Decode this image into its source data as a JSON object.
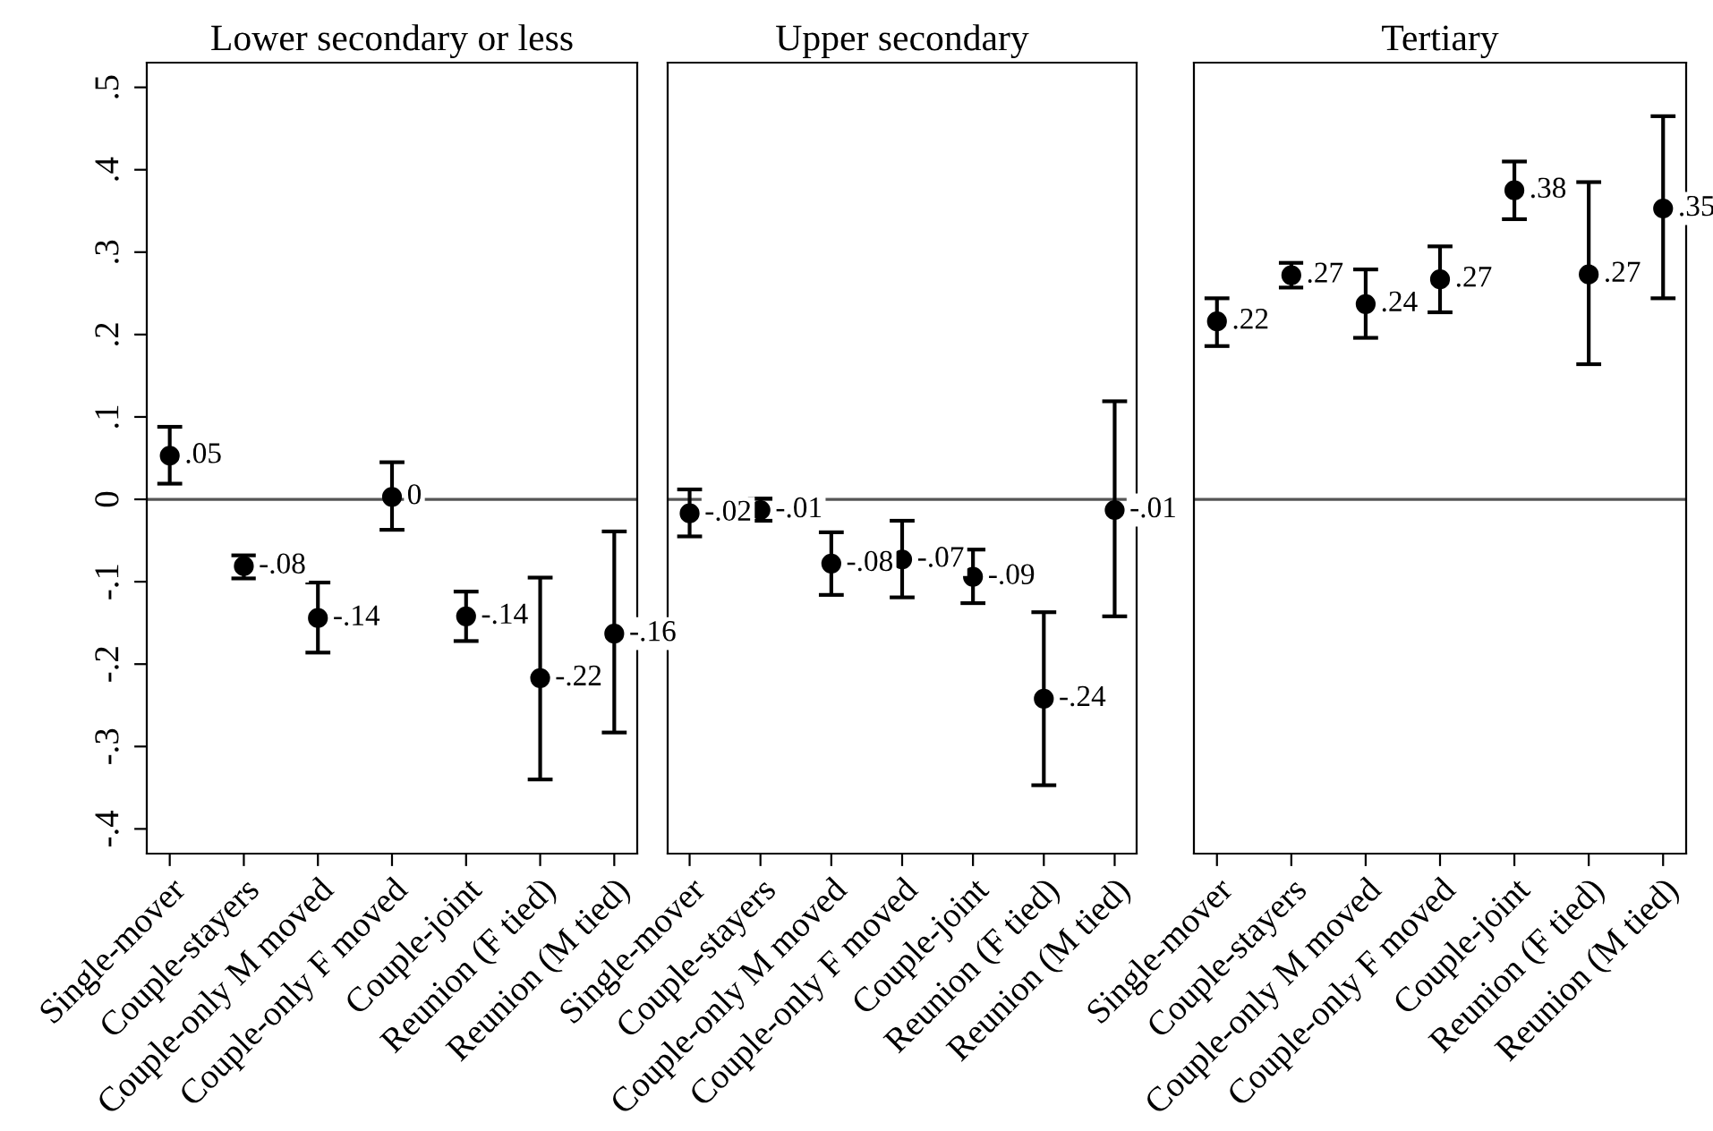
{
  "chart_data": [
    {
      "type": "scatter",
      "title": "Lower secondary or less",
      "categories": [
        "Single-mover",
        "Couple-stayers",
        "Couple-only M moved",
        "Couple-only F moved",
        "Couple-joint",
        "Reunion (F tied)",
        "Reunion (M tied)"
      ],
      "series": [
        {
          "color": "#000000",
          "values": [
            0.053,
            -0.081,
            -0.144,
            0.003,
            -0.142,
            -0.217,
            -0.163
          ],
          "errors": [
            [
              0.019,
              0.088
            ],
            [
              -0.096,
              -0.068
            ],
            [
              -0.186,
              -0.101
            ],
            [
              -0.037,
              0.045
            ],
            [
              -0.172,
              -0.112
            ],
            [
              -0.34,
              -0.095
            ],
            [
              -0.283,
              -0.039
            ]
          ],
          "value_labels": [
            ".05",
            "-.08",
            "-.14",
            "0",
            "-.14",
            "-.22",
            "-.16"
          ]
        }
      ],
      "ylim": [
        -0.43,
        0.53
      ],
      "yticks": [
        {
          "value": -0.4,
          "label": "-.4"
        },
        {
          "value": -0.3,
          "label": "-.3"
        },
        {
          "value": -0.2,
          "label": "-.2"
        },
        {
          "value": -0.1,
          "label": "-.1"
        },
        0,
        {
          "value": 0.1,
          "label": ".1"
        },
        {
          "value": 0.2,
          "label": ".2"
        },
        {
          "value": 0.3,
          "label": ".3"
        },
        {
          "value": 0.4,
          "label": ".4"
        },
        {
          "value": 0.5,
          "label": ".5"
        }
      ],
      "ref_lines": [
        {
          "axis": "y",
          "value": 0,
          "color": "#555555"
        }
      ],
      "marker": "circle",
      "grid": false,
      "legend": false
    },
    {
      "type": "scatter",
      "title": "Upper secondary",
      "categories": [
        "Single-mover",
        "Couple-stayers",
        "Couple-only M moved",
        "Couple-only F moved",
        "Couple-joint",
        "Reunion (F tied)",
        "Reunion (M tied)"
      ],
      "series": [
        {
          "color": "#000000",
          "values": [
            -0.017,
            -0.013,
            -0.078,
            -0.073,
            -0.094,
            -0.242,
            -0.013
          ],
          "errors": [
            [
              -0.045,
              0.012
            ],
            [
              -0.026,
              0.001
            ],
            [
              -0.116,
              -0.04
            ],
            [
              -0.119,
              -0.026
            ],
            [
              -0.126,
              -0.061
            ],
            [
              -0.347,
              -0.137
            ],
            [
              -0.142,
              0.119
            ]
          ],
          "value_labels": [
            "-.02",
            "-.01",
            "-.08",
            "-.07",
            "-.09",
            "-.24",
            "-.01"
          ]
        }
      ],
      "ylim": [
        -0.43,
        0.53
      ],
      "tick_labels": "x",
      "ref_lines": [
        {
          "axis": "y",
          "value": 0,
          "color": "#555555"
        }
      ],
      "marker": "circle",
      "grid": false,
      "legend": false
    },
    {
      "type": "scatter",
      "title": "Tertiary",
      "categories": [
        "Single-mover",
        "Couple-stayers",
        "Couple-only M moved",
        "Couple-only F moved",
        "Couple-joint",
        "Reunion (F tied)",
        "Reunion (M tied)"
      ],
      "series": [
        {
          "color": "#000000",
          "values": [
            0.216,
            0.272,
            0.237,
            0.267,
            0.375,
            0.273,
            0.353
          ],
          "errors": [
            [
              0.186,
              0.244
            ],
            [
              0.257,
              0.287
            ],
            [
              0.196,
              0.279
            ],
            [
              0.227,
              0.307
            ],
            [
              0.34,
              0.41
            ],
            [
              0.164,
              0.385
            ],
            [
              0.244,
              0.465
            ]
          ],
          "value_labels": [
            ".22",
            ".27",
            ".24",
            ".27",
            ".38",
            ".27",
            ".35"
          ]
        }
      ],
      "ylim": [
        -0.43,
        0.53
      ],
      "tick_labels": "x",
      "ref_lines": [
        {
          "axis": "y",
          "value": 0,
          "color": "#555555"
        }
      ],
      "marker": "circle",
      "grid": false,
      "legend": false
    }
  ]
}
